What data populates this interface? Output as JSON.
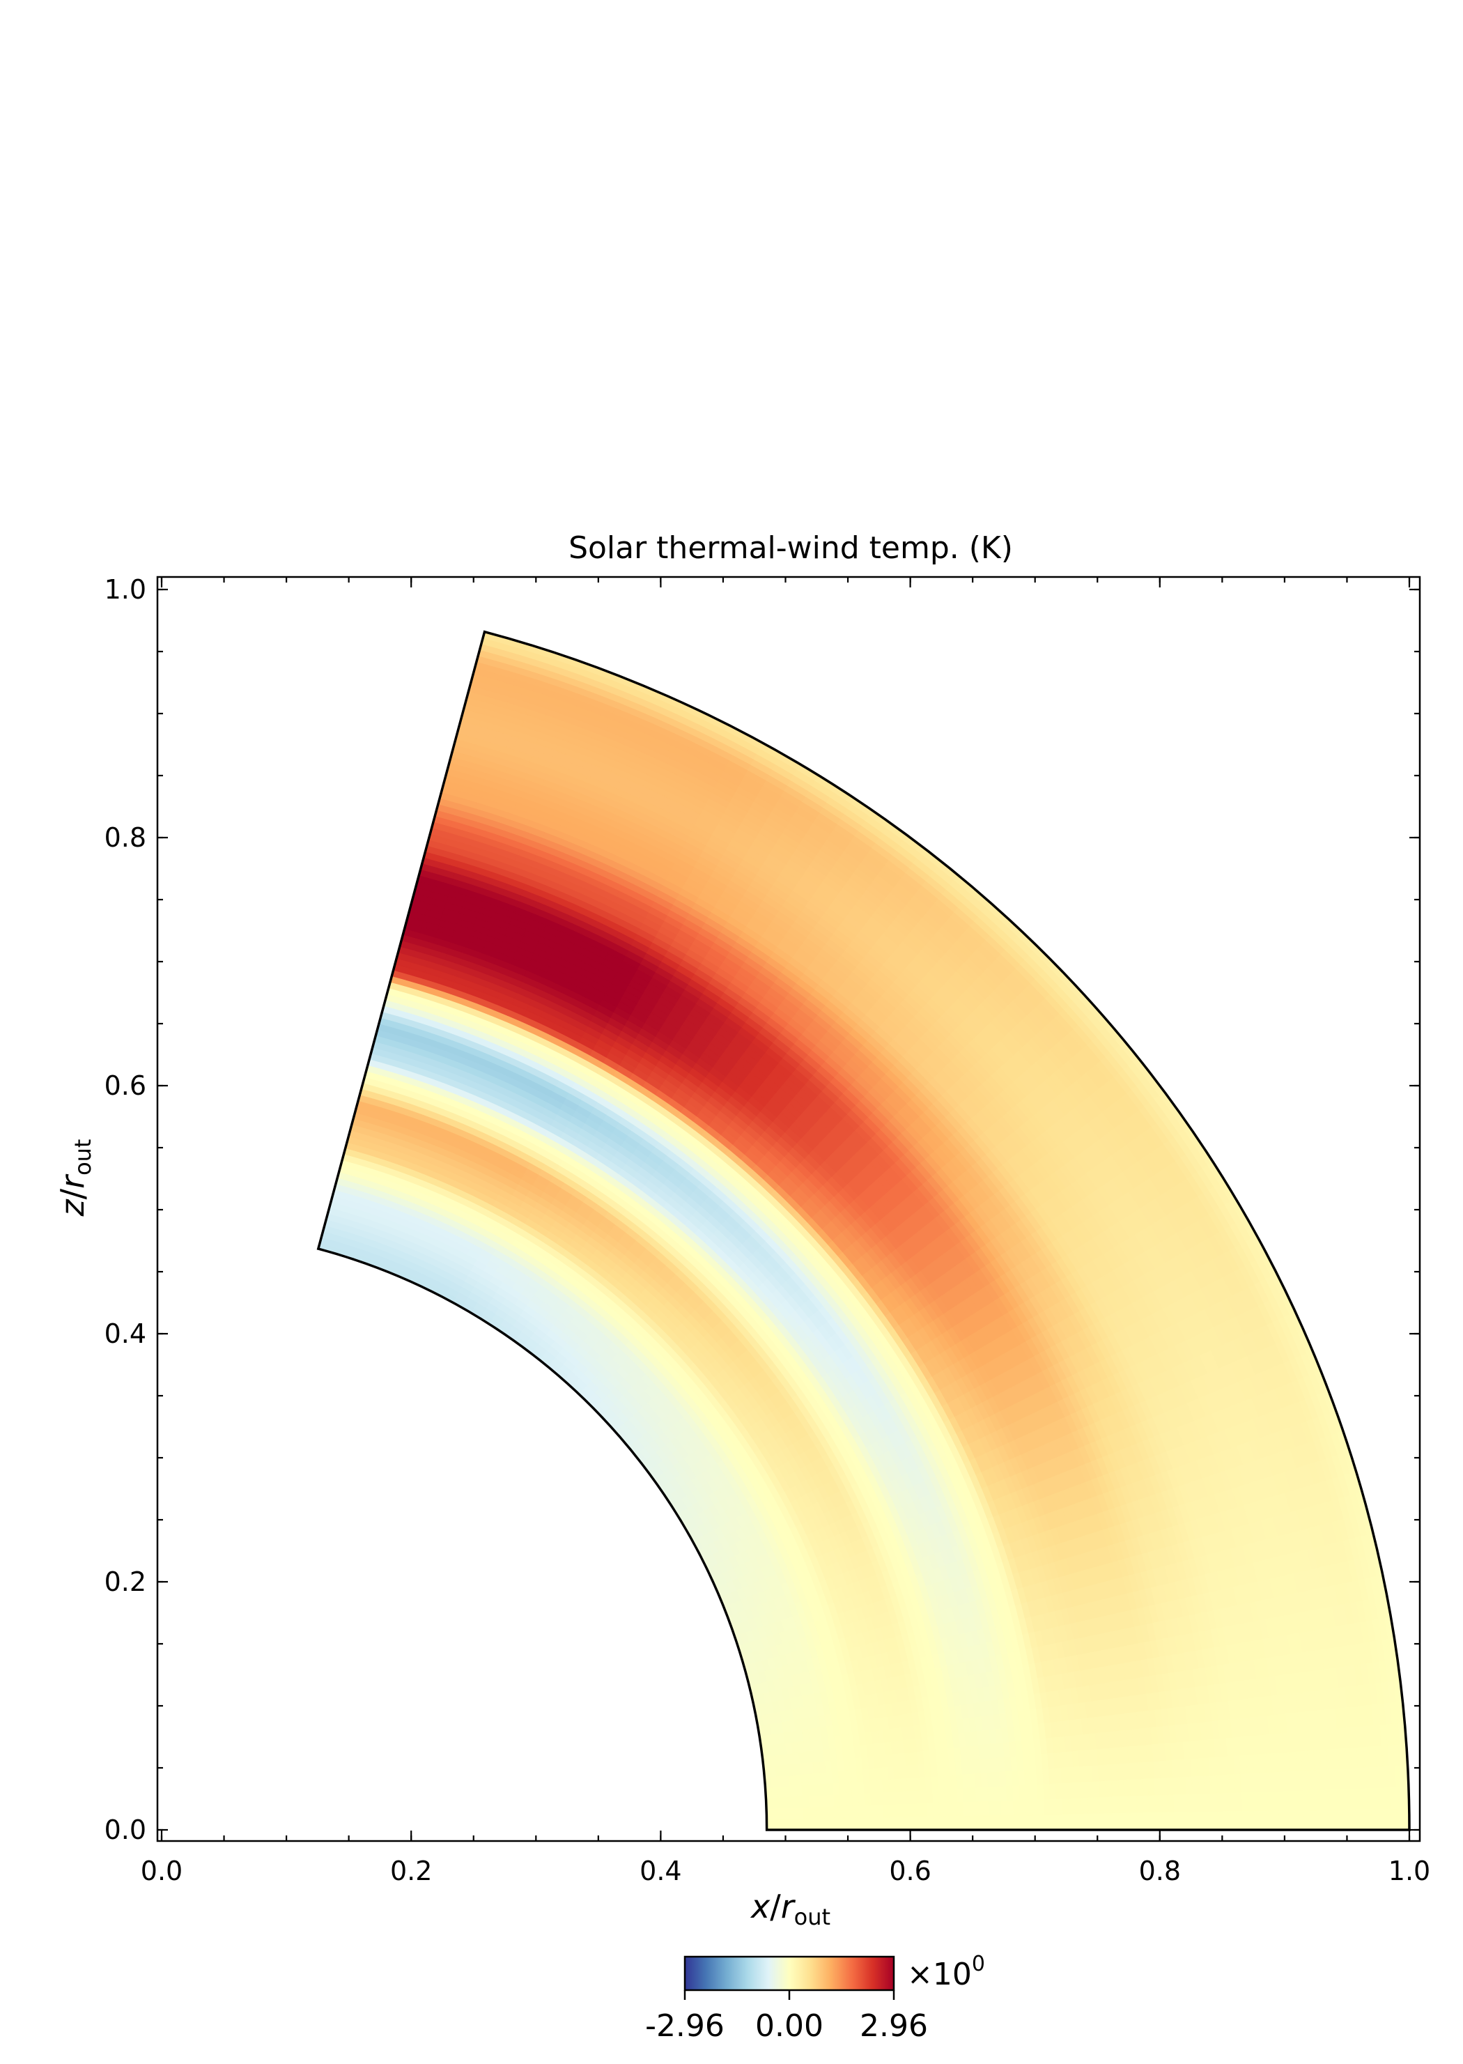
{
  "chart_data": {
    "type": "heatmap",
    "title": "Solar thermal-wind temp. (K)",
    "xlabel": {
      "var": "x",
      "sub": "out"
    },
    "ylabel": {
      "var": "z",
      "sub": "out"
    },
    "xlim": [
      0.0,
      1.0
    ],
    "ylim": [
      0.0,
      1.0
    ],
    "x_ticks": [
      "0.0",
      "0.2",
      "0.4",
      "0.6",
      "0.8",
      "1.0"
    ],
    "y_ticks": [
      "0.0",
      "0.2",
      "0.4",
      "0.6",
      "0.8",
      "1.0"
    ],
    "domain": {
      "shape": "spherical shell sector",
      "r_inner": 0.485,
      "r_outer": 1.0,
      "colatitude_min_deg": 15,
      "colatitude_max_deg": 90
    },
    "colorbar": {
      "colormap": "RdYlBu_r",
      "min": -2.96,
      "max": 2.96,
      "tick_labels": [
        "-2.96",
        "0.00",
        "2.96"
      ],
      "multiplier_base": "×10",
      "multiplier_exp": "0",
      "colors": [
        "#313695",
        "#4575b4",
        "#74add1",
        "#abd9e9",
        "#e0f3f8",
        "#ffffbf",
        "#fee090",
        "#fdae61",
        "#f46d43",
        "#d73027",
        "#a50026"
      ]
    },
    "radial_bands": [
      {
        "r": 0.485,
        "value": -0.9
      },
      {
        "r": 0.53,
        "value": -0.6
      },
      {
        "r": 0.555,
        "value": 0.0
      },
      {
        "r": 0.575,
        "value": 0.8
      },
      {
        "r": 0.605,
        "value": 1.1
      },
      {
        "r": 0.63,
        "value": 0.0
      },
      {
        "r": 0.65,
        "value": -1.0
      },
      {
        "r": 0.67,
        "value": -1.3
      },
      {
        "r": 0.7,
        "value": 0.0
      },
      {
        "r": 0.72,
        "value": 2.4
      },
      {
        "r": 0.76,
        "value": 3.0
      },
      {
        "r": 0.79,
        "value": 3.0
      },
      {
        "r": 0.83,
        "value": 2.0
      },
      {
        "r": 0.87,
        "value": 1.2
      },
      {
        "r": 0.92,
        "value": 1.0
      },
      {
        "r": 0.97,
        "value": 1.1
      },
      {
        "r": 1.0,
        "value": 0.5
      }
    ],
    "equator_value": 0.0
  }
}
